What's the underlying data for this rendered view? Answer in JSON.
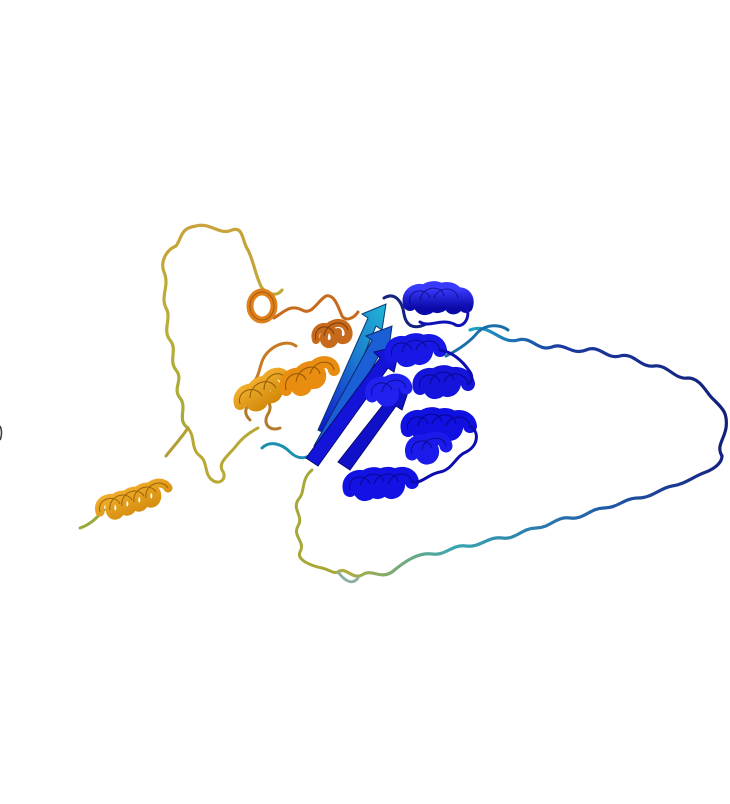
{
  "image": {
    "subject": "protein-cartoon",
    "background": "#ffffff",
    "colors": {
      "core_blue": "#1010e6",
      "core_blue_dark": "#0a0aa8",
      "navy_loop": "#1a2a8c",
      "teal": "#1fa6c4",
      "teal_dark": "#157f99",
      "green_yellow": "#9aa82c",
      "olive": "#b3a033",
      "amber": "#f0a010",
      "amber_dark": "#b06f00",
      "orange": "#e08a18",
      "rust": "#c86a1c"
    }
  }
}
